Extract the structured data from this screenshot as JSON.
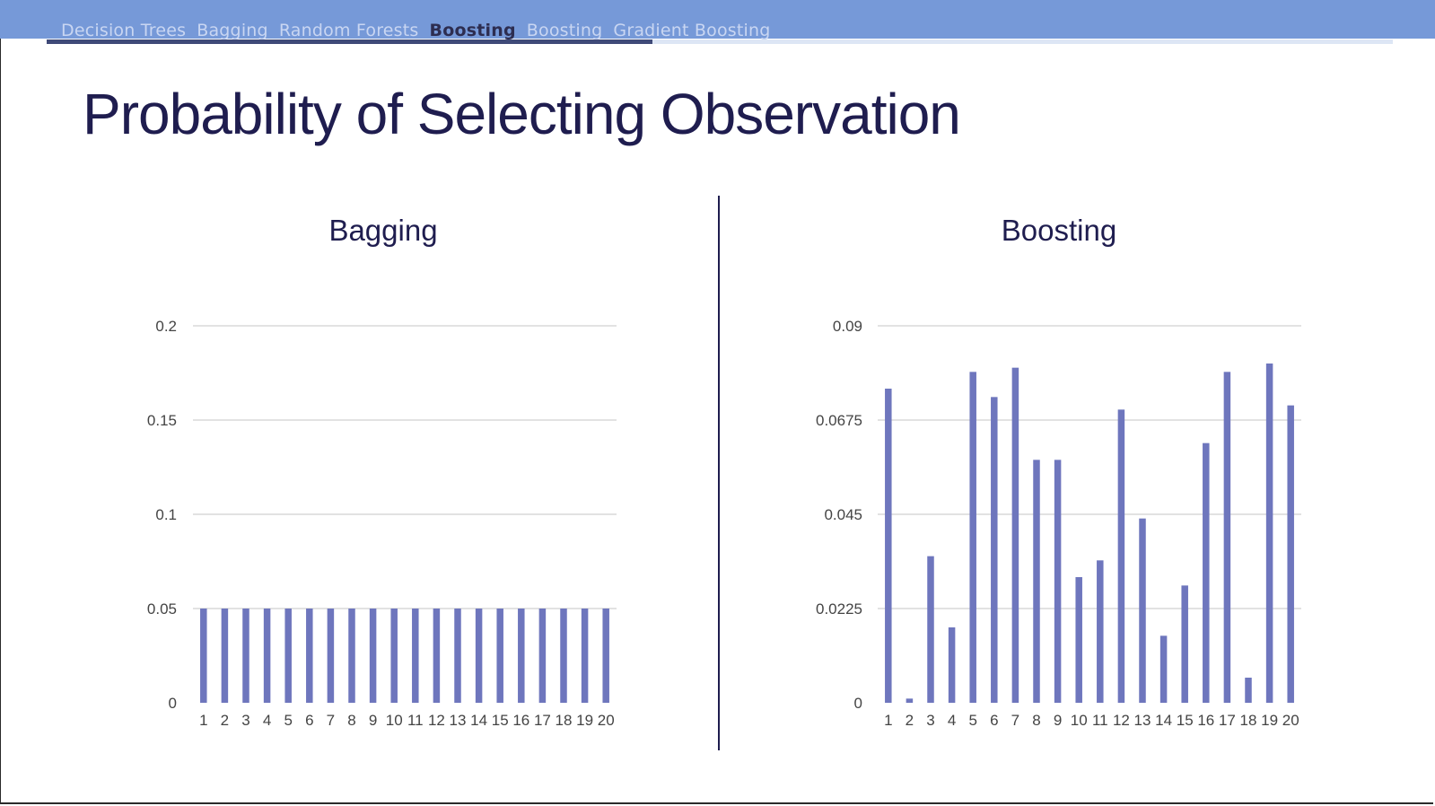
{
  "nav": {
    "items": [
      {
        "label": "Decision Trees",
        "active": false
      },
      {
        "label": "Bagging",
        "active": false
      },
      {
        "label": "Random Forests",
        "active": false
      },
      {
        "label": "Boosting",
        "active": true
      },
      {
        "label": "Boosting",
        "active": false
      },
      {
        "label": "Gradient Boosting",
        "active": false
      }
    ],
    "progress": 0.45
  },
  "slide": {
    "title": "Probability of Selecting Observation"
  },
  "colors": {
    "bar": "#6e76bd",
    "grid": "#d9d9d9",
    "title": "#1f1d4f"
  },
  "chart_data": [
    {
      "type": "bar",
      "title": "Bagging",
      "categories": [
        "1",
        "2",
        "3",
        "4",
        "5",
        "6",
        "7",
        "8",
        "9",
        "10",
        "11",
        "12",
        "13",
        "14",
        "15",
        "16",
        "17",
        "18",
        "19",
        "20"
      ],
      "values": [
        0.05,
        0.05,
        0.05,
        0.05,
        0.05,
        0.05,
        0.05,
        0.05,
        0.05,
        0.05,
        0.05,
        0.05,
        0.05,
        0.05,
        0.05,
        0.05,
        0.05,
        0.05,
        0.05,
        0.05
      ],
      "ylim": [
        0,
        0.2
      ],
      "yticks": [
        "0",
        "0.05",
        "0.1",
        "0.15",
        "0.2"
      ],
      "ytick_values": [
        0,
        0.05,
        0.1,
        0.15,
        0.2
      ],
      "grid": true,
      "legend": "none"
    },
    {
      "type": "bar",
      "title": "Boosting",
      "categories": [
        "1",
        "2",
        "3",
        "4",
        "5",
        "6",
        "7",
        "8",
        "9",
        "10",
        "11",
        "12",
        "13",
        "14",
        "15",
        "16",
        "17",
        "18",
        "19",
        "20"
      ],
      "values": [
        0.075,
        0.001,
        0.035,
        0.018,
        0.079,
        0.073,
        0.08,
        0.058,
        0.058,
        0.03,
        0.034,
        0.07,
        0.044,
        0.016,
        0.028,
        0.062,
        0.079,
        0.006,
        0.081,
        0.071
      ],
      "ylim": [
        0,
        0.09
      ],
      "yticks": [
        "0",
        "0.0225",
        "0.045",
        "0.0675",
        "0.09"
      ],
      "ytick_values": [
        0,
        0.0225,
        0.045,
        0.0675,
        0.09
      ],
      "grid": true,
      "legend": "none"
    }
  ]
}
